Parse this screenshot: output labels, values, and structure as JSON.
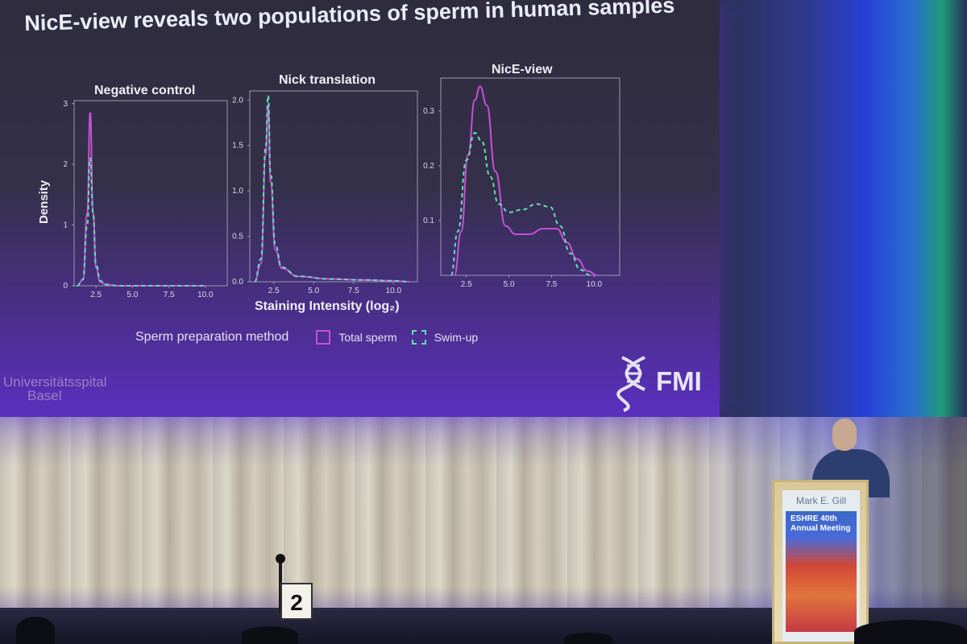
{
  "slide": {
    "title": "NicE-view reveals two populations of sperm in human samples",
    "x_label": "Staining Intensity (log₂)",
    "y_label": "Density",
    "legend": {
      "title": "Sperm preparation method",
      "total_label": "Total sperm",
      "swimup_label": "Swim-up",
      "total_color": "#c84fd8",
      "swimup_color": "#5fe0b0"
    },
    "logo_basel_line1": "Universitätsspital",
    "logo_basel_line2": "Basel",
    "logo_fmi": "FMI"
  },
  "chart_data": [
    {
      "type": "line",
      "title": "Negative control",
      "xlabel": "Staining Intensity (log₂)",
      "ylabel": "Density",
      "xticks": [
        "2.5",
        "5.0",
        "7.5",
        "10.0"
      ],
      "yticks": [
        "0",
        "1",
        "2",
        "3"
      ],
      "xlim": [
        1.0,
        11.5
      ],
      "ylim": [
        0,
        3.05
      ],
      "series": [
        {
          "name": "Total sperm",
          "x": [
            1.2,
            1.6,
            1.9,
            2.1,
            2.3,
            2.5,
            2.8,
            3.2,
            4.0,
            6.0,
            10.0
          ],
          "y": [
            0.0,
            0.1,
            1.2,
            2.85,
            1.2,
            0.3,
            0.06,
            0.02,
            0.0,
            0.0,
            0.0
          ]
        },
        {
          "name": "Swim-up",
          "x": [
            1.2,
            1.6,
            1.9,
            2.1,
            2.3,
            2.5,
            2.8,
            3.2,
            4.0,
            6.0,
            10.0
          ],
          "y": [
            0.0,
            0.1,
            1.0,
            2.1,
            1.2,
            0.35,
            0.08,
            0.02,
            0.0,
            0.0,
            0.0
          ]
        }
      ]
    },
    {
      "type": "line",
      "title": "Nick translation",
      "xlabel": "Staining Intensity (log₂)",
      "ylabel": "Density",
      "xticks": [
        "2.5",
        "5.0",
        "7.5",
        "10.0"
      ],
      "yticks": [
        "0.0",
        "0.5",
        "1.0",
        "1.5",
        "2.0"
      ],
      "xlim": [
        1.0,
        11.5
      ],
      "ylim": [
        0,
        2.1
      ],
      "series": [
        {
          "name": "Total sperm",
          "x": [
            1.3,
            1.7,
            2.0,
            2.15,
            2.3,
            2.6,
            3.0,
            4.0,
            6.0,
            8.0,
            10.0,
            11.0
          ],
          "y": [
            0.0,
            0.2,
            1.4,
            1.95,
            1.1,
            0.35,
            0.15,
            0.06,
            0.03,
            0.02,
            0.01,
            0.0
          ]
        },
        {
          "name": "Swim-up",
          "x": [
            1.3,
            1.7,
            2.0,
            2.15,
            2.3,
            2.6,
            3.0,
            4.0,
            6.0,
            8.0,
            10.0,
            11.0
          ],
          "y": [
            0.0,
            0.25,
            1.5,
            2.05,
            1.2,
            0.4,
            0.16,
            0.06,
            0.03,
            0.02,
            0.01,
            0.0
          ]
        }
      ]
    },
    {
      "type": "line",
      "title": "NicE-view",
      "xlabel": "Staining Intensity (log₂)",
      "ylabel": "Density",
      "xticks": [
        "2.5",
        "5.0",
        "7.5",
        "10.0"
      ],
      "yticks": [
        "0.1",
        "0.2",
        "0.3"
      ],
      "xlim": [
        1.0,
        11.5
      ],
      "ylim": [
        0,
        0.36
      ],
      "series": [
        {
          "name": "Total sperm",
          "x": [
            1.8,
            2.2,
            2.6,
            3.0,
            3.3,
            3.7,
            4.2,
            4.8,
            5.4,
            6.2,
            7.0,
            7.8,
            8.4,
            9.0,
            9.6,
            10.2
          ],
          "y": [
            0.0,
            0.08,
            0.22,
            0.32,
            0.345,
            0.31,
            0.19,
            0.09,
            0.075,
            0.075,
            0.085,
            0.085,
            0.06,
            0.03,
            0.008,
            0.0
          ]
        },
        {
          "name": "Swim-up",
          "x": [
            1.6,
            2.0,
            2.5,
            3.0,
            3.4,
            3.9,
            4.4,
            5.0,
            5.8,
            6.6,
            7.4,
            8.0,
            8.6,
            9.2,
            9.8
          ],
          "y": [
            0.0,
            0.08,
            0.21,
            0.26,
            0.245,
            0.18,
            0.13,
            0.115,
            0.12,
            0.13,
            0.125,
            0.09,
            0.04,
            0.01,
            0.0
          ]
        }
      ]
    }
  ],
  "podium": {
    "name": "Mark E. Gill",
    "meeting_line1": "ESHRE 40th",
    "meeting_line2": "Annual Meeting"
  },
  "stage_sign": "2"
}
